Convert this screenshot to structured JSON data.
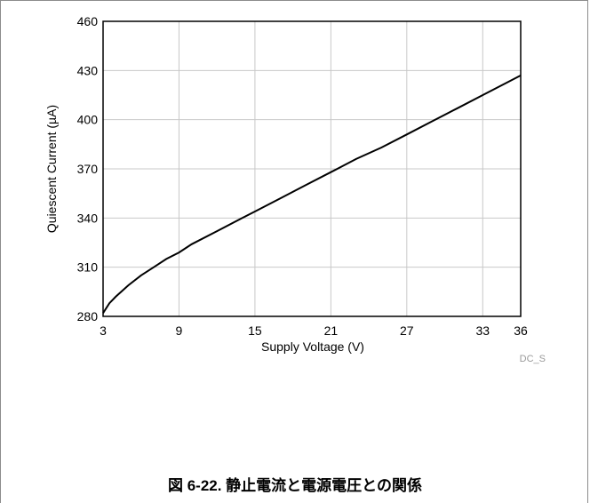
{
  "chart_data": {
    "type": "line",
    "xlabel": "Supply Voltage (V)",
    "ylabel": "Quiescent Current (µA)",
    "xlim": [
      3,
      36
    ],
    "ylim": [
      280,
      460
    ],
    "x_ticks": [
      3,
      9,
      15,
      21,
      27,
      33,
      36
    ],
    "y_ticks": [
      280,
      310,
      340,
      370,
      400,
      430,
      460
    ],
    "grid": true,
    "series": [
      {
        "x": [
          3,
          3.5,
          4,
          5,
          6,
          7,
          8,
          9,
          10,
          12,
          14,
          15,
          17,
          19,
          21,
          23,
          25,
          27,
          29,
          31,
          33,
          35,
          36
        ],
        "values": [
          282,
          288,
          292,
          299,
          305,
          310,
          315,
          319,
          324,
          332,
          340,
          344,
          352,
          360,
          368,
          376,
          383,
          391,
          399,
          407,
          415,
          423,
          427
        ]
      }
    ],
    "code_label": "DC_S"
  },
  "caption": "図 6-22. 静止電流と電源電圧との関係"
}
